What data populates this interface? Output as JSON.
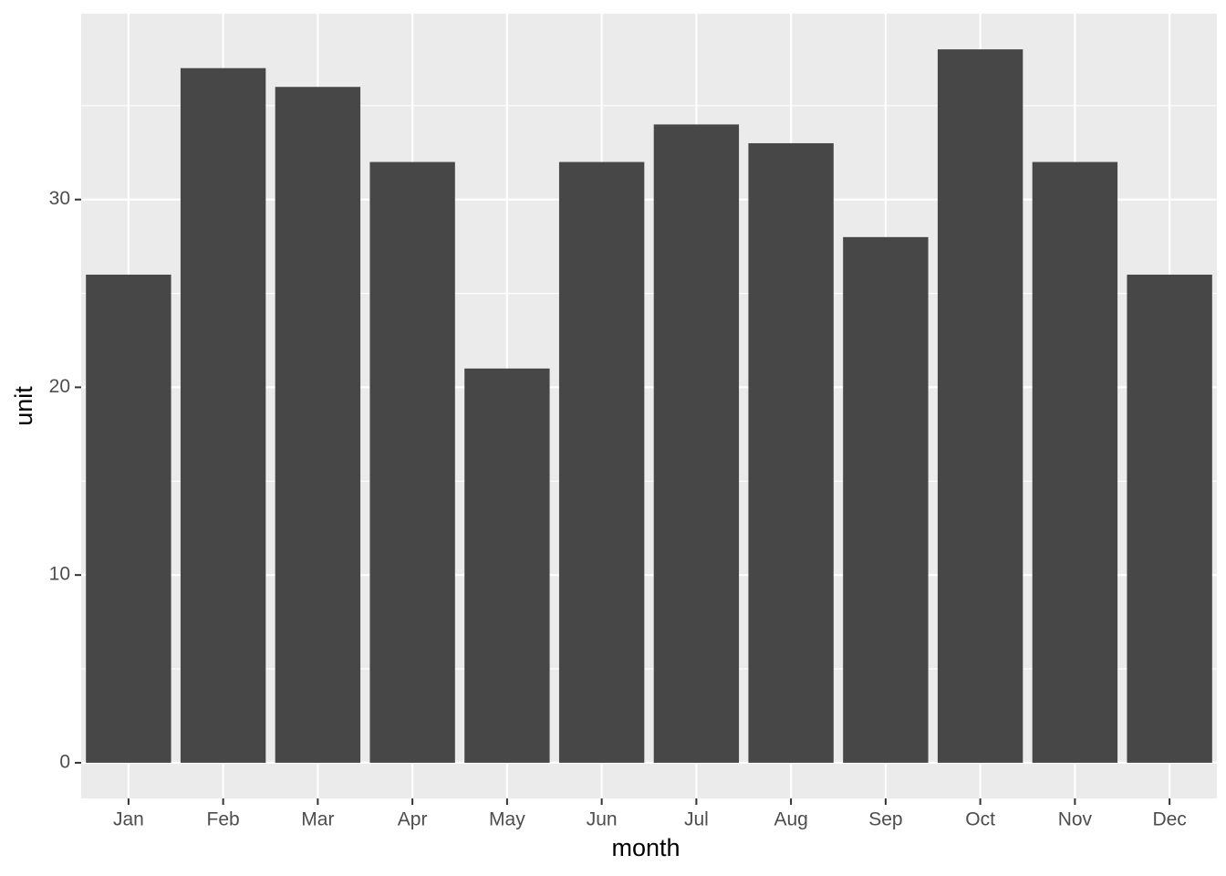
{
  "chart_data": {
    "type": "bar",
    "categories": [
      "Jan",
      "Feb",
      "Mar",
      "Apr",
      "May",
      "Jun",
      "Jul",
      "Aug",
      "Sep",
      "Oct",
      "Nov",
      "Dec"
    ],
    "values": [
      26,
      37,
      36,
      32,
      21,
      32,
      34,
      33,
      28,
      38,
      32,
      26
    ],
    "color": "#474747",
    "x_label": "month",
    "y_label": "unit",
    "ylim": [
      -1.9,
      39.9
    ],
    "yticks": [
      0,
      10,
      20,
      30
    ],
    "yminor": [
      5,
      15,
      25,
      35
    ],
    "grid": true
  }
}
